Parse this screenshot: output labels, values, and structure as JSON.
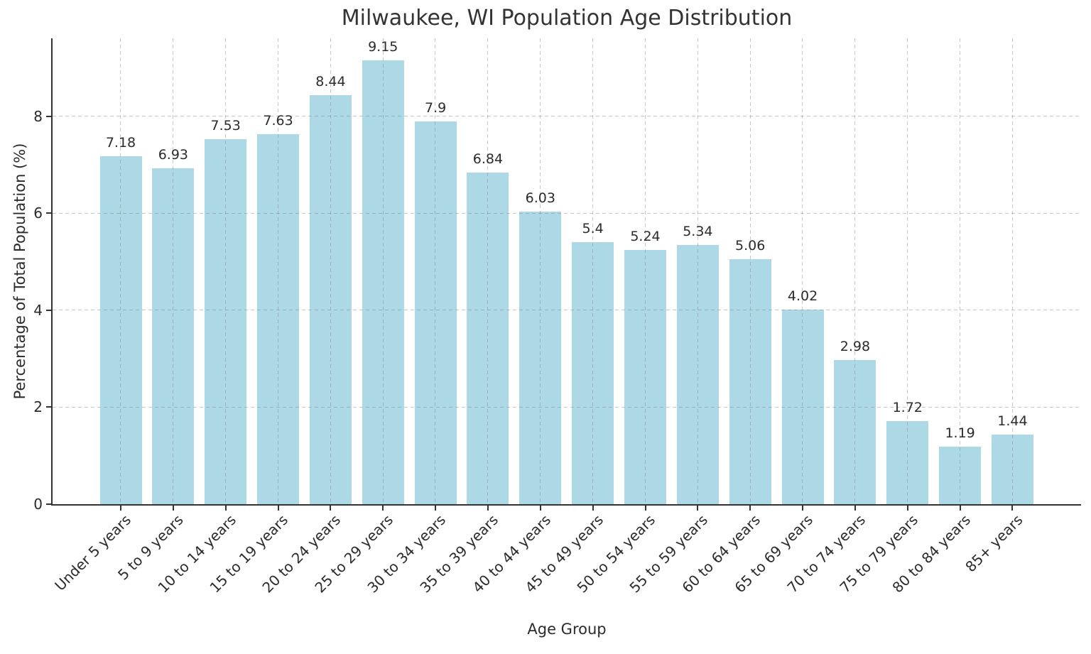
{
  "chart_data": {
    "type": "bar",
    "title": "Milwaukee, WI Population Age Distribution",
    "xlabel": "Age Group",
    "ylabel": "Percentage of Total Population (%)",
    "categories": [
      "Under 5 years",
      "5 to 9 years",
      "10 to 14 years",
      "15 to 19 years",
      "20 to 24 years",
      "25 to 29 years",
      "30 to 34 years",
      "35 to 39 years",
      "40 to 44 years",
      "45 to 49 years",
      "50 to 54 years",
      "55 to 59 years",
      "60 to 64 years",
      "65 to 69 years",
      "70 to 74 years",
      "75 to 79 years",
      "80 to 84 years",
      "85+ years"
    ],
    "values": [
      7.18,
      6.93,
      7.53,
      7.63,
      8.44,
      9.15,
      7.9,
      6.84,
      6.03,
      5.4,
      5.24,
      5.34,
      5.06,
      4.02,
      2.98,
      1.72,
      1.19,
      1.44
    ],
    "value_labels": [
      "7.18",
      "6.93",
      "7.53",
      "7.63",
      "8.44",
      "9.15",
      "7.9",
      "6.84",
      "6.03",
      "5.4",
      "5.24",
      "5.34",
      "5.06",
      "4.02",
      "2.98",
      "1.72",
      "1.19",
      "1.44"
    ],
    "yticks": [
      0,
      2,
      4,
      6,
      8
    ],
    "ylim": [
      0,
      9.61
    ],
    "grid": true,
    "grid_style": "dashed",
    "legend_position": "none",
    "colors": {
      "bar": "#ADD8E6",
      "axis": "#333333",
      "grid": "#c3c3c3",
      "text": "#2b2b2b",
      "background": "#ffffff"
    }
  }
}
